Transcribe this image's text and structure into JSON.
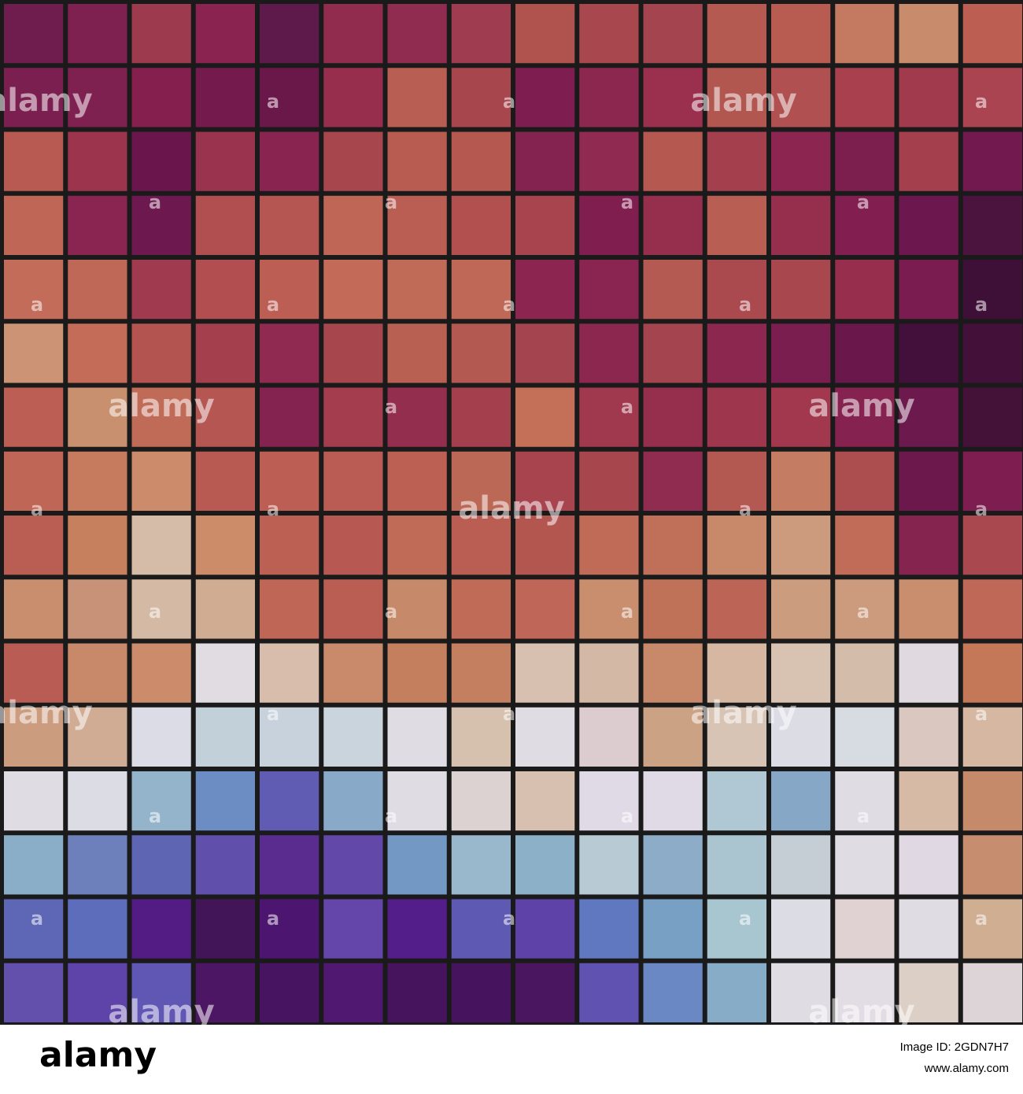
{
  "mosaic": {
    "rows": [
      [
        "#6e1d4e",
        "#7e2150",
        "#9e3a4e",
        "#8a2350",
        "#5e1a4a",
        "#922c4e",
        "#902c50",
        "#a03c50",
        "#b0524e",
        "#a8484e",
        "#a4444e",
        "#b45a50",
        "#b85c52",
        "#c47a60",
        "#c88c6c",
        "#bc5e52"
      ],
      [
        "#7a1f50",
        "#7e2150",
        "#841f4e",
        "#741a4c",
        "#6a184a",
        "#982e4e",
        "#b85e52",
        "#a8464e",
        "#7e1e50",
        "#8c2850",
        "#9a304e",
        "#b25650",
        "#b05050",
        "#a8404e",
        "#a23a4e",
        "#aa4450"
      ],
      [
        "#b85a52",
        "#9c344e",
        "#6a164c",
        "#9a344e",
        "#892450",
        "#a8464e",
        "#b85c52",
        "#b45850",
        "#842250",
        "#902a50",
        "#b45850",
        "#a4404e",
        "#8c2650",
        "#7c1e4e",
        "#a4404e",
        "#721a50"
      ],
      [
        "#c06656",
        "#8a2450",
        "#6e1850",
        "#b04e50",
        "#b65652",
        "#c06656",
        "#ba5e54",
        "#b25050",
        "#a8444e",
        "#801e50",
        "#962e4e",
        "#b85e52",
        "#962e4e",
        "#821e50",
        "#6c184e",
        "#4a143e"
      ],
      [
        "#c46c5a",
        "#c06858",
        "#a03a4e",
        "#b24e50",
        "#bc5e54",
        "#c46a58",
        "#c06a58",
        "#c06858",
        "#8c2650",
        "#8a2450",
        "#b45a52",
        "#aa4a4e",
        "#a8484e",
        "#982e4e",
        "#7a1c50",
        "#3e1038"
      ],
      [
        "#cc9474",
        "#c46c58",
        "#b45450",
        "#a4404e",
        "#902a50",
        "#a8464e",
        "#b86052",
        "#b45852",
        "#a4444e",
        "#8c2850",
        "#a4444e",
        "#8c2850",
        "#7a1e50",
        "#6a184c",
        "#42103a",
        "#421038"
      ],
      [
        "#bc5e54",
        "#c8906e",
        "#c06a58",
        "#b65652",
        "#842250",
        "#a43e4e",
        "#942e4e",
        "#a4404e",
        "#c47058",
        "#a0384e",
        "#962e4e",
        "#9e364e",
        "#a2384e",
        "#862250",
        "#6c1a4e",
        "#441238"
      ],
      [
        "#c06656",
        "#c67a5e",
        "#cc8c6c",
        "#b85a52",
        "#bc5e54",
        "#ba5c54",
        "#bc6054",
        "#bc6856",
        "#a8444e",
        "#a8464e",
        "#902c50",
        "#b45852",
        "#c47c62",
        "#ac4e50",
        "#6c184c",
        "#7e1e50"
      ],
      [
        "#ba5e54",
        "#c6805e",
        "#d4bca8",
        "#cc8c6a",
        "#bc6054",
        "#b85852",
        "#c06a58",
        "#ba5e54",
        "#b45650",
        "#c06a58",
        "#c07058",
        "#c8886a",
        "#cc9a7c",
        "#c06c58",
        "#862450",
        "#aa4850"
      ],
      [
        "#c88e6e",
        "#c89278",
        "#d4baa4",
        "#d0ac92",
        "#c06656",
        "#ba5e54",
        "#c68a6a",
        "#c06a58",
        "#c06658",
        "#c88e6e",
        "#c07258",
        "#bc6456",
        "#cc9c7e",
        "#cc9a7c",
        "#c88e6e",
        "#c06858"
      ],
      [
        "#b85c54",
        "#c8886a",
        "#cc8c6c",
        "#e0dce2",
        "#d8bcac",
        "#c88a6a",
        "#c4805e",
        "#c47e60",
        "#d8c0b0",
        "#d4b8a6",
        "#c8886a",
        "#d6b8a2",
        "#d8c2b2",
        "#d4bcaa",
        "#e0dae0",
        "#c47858"
      ],
      [
        "#cc9c7e",
        "#d0ac94",
        "#dcdce6",
        "#c2d0da",
        "#c8d2dc",
        "#cad4dc",
        "#e0dce4",
        "#d6c0ae",
        "#e0dce4",
        "#dcccd0",
        "#cca284",
        "#d8c4b4",
        "#dcdce4",
        "#d6dce2",
        "#dac8c0",
        "#d6b8a2"
      ],
      [
        "#e0dce4",
        "#dcdce4",
        "#94b4cc",
        "#6c8cc4",
        "#605cb4",
        "#88aac8",
        "#e0dce4",
        "#dcd2d2",
        "#d8c0b0",
        "#e0dae6",
        "#e0dae6",
        "#b0c8d4",
        "#86a8c6",
        "#e0dce4",
        "#d6baa6",
        "#c48a6a"
      ],
      [
        "#8aaec8",
        "#6e80bc",
        "#5e66b4",
        "#6050ac",
        "#5a2c90",
        "#6248a8",
        "#7498c4",
        "#9ab8cc",
        "#8cb0c8",
        "#b8cad4",
        "#8cacc8",
        "#aac4d0",
        "#c4ced4",
        "#e0dce4",
        "#e0d8e2",
        "#c68e6e"
      ],
      [
        "#5e66b6",
        "#5e6cbc",
        "#521c84",
        "#421458",
        "#4c1670",
        "#6446aa",
        "#541e8a",
        "#5e5ab4",
        "#5e42a8",
        "#6078c0",
        "#78a0c4",
        "#a8c6d0",
        "#dcdce4",
        "#e0d2d2",
        "#e0dce4",
        "#d0ae92"
      ],
      [
        "#6250ac",
        "#5e44a8",
        "#6056b4",
        "#4c1664",
        "#461460",
        "#501870",
        "#46145c",
        "#46145e",
        "#4a1660",
        "#6052b0",
        "#6a88c4",
        "#86acc8",
        "#e0dce4",
        "#e2dce4",
        "#dcd0c6",
        "#dcd4d6"
      ]
    ]
  },
  "watermark": "alamy",
  "watermark_small": "a",
  "footer": {
    "logo": "alamy",
    "image_id": "Image ID: 2GDN7H7",
    "url": "www.alamy.com"
  }
}
